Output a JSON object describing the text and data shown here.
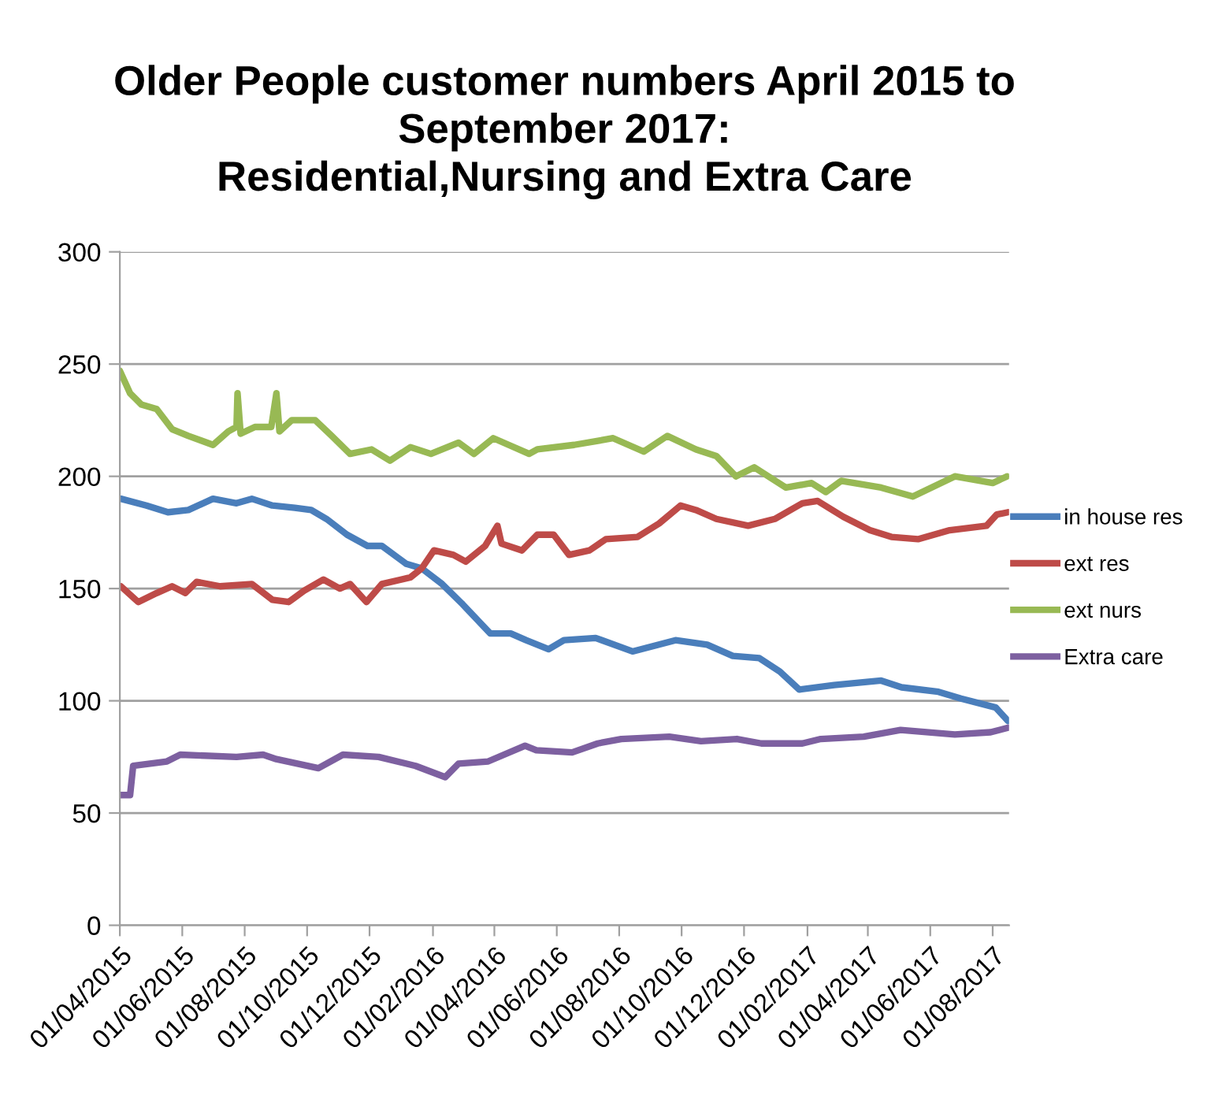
{
  "chart_data": {
    "type": "line",
    "title": "Older People customer numbers April 2015 to\nSeptember 2017:\nResidential,Nursing and Extra Care",
    "series": [
      {
        "name": "in house res",
        "color": "#4a7ebb",
        "x": [
          "2015-04-02",
          "2015-04-27",
          "2015-05-18",
          "2015-06-07",
          "2015-07-01",
          "2015-07-24",
          "2015-08-08",
          "2015-08-28",
          "2015-09-19",
          "2015-10-05",
          "2015-10-20",
          "2015-11-09",
          "2015-11-29",
          "2015-12-13",
          "2016-01-06",
          "2016-01-21",
          "2016-02-10",
          "2016-03-01",
          "2016-03-28",
          "2016-04-17",
          "2016-05-02",
          "2016-05-24",
          "2016-06-08",
          "2016-07-09",
          "2016-08-14",
          "2016-09-25",
          "2016-10-26",
          "2016-11-20",
          "2016-12-16",
          "2017-01-05",
          "2017-01-24",
          "2017-02-27",
          "2017-04-14",
          "2017-05-04",
          "2017-06-09",
          "2017-07-01",
          "2017-08-04",
          "2017-08-16"
        ],
        "values": [
          190,
          187,
          184,
          185,
          190,
          188,
          190,
          187,
          186,
          185,
          181,
          174,
          169,
          169,
          161,
          159,
          152,
          143,
          130,
          130,
          127,
          123,
          127,
          128,
          122,
          127,
          125,
          120,
          119,
          113,
          105,
          107,
          109,
          106,
          104,
          101,
          97,
          91
        ]
      },
      {
        "name": "ext res",
        "color": "#be4b48",
        "x": [
          "2015-04-02",
          "2015-04-19",
          "2015-05-07",
          "2015-05-22",
          "2015-06-04",
          "2015-06-15",
          "2015-07-08",
          "2015-08-08",
          "2015-08-28",
          "2015-09-13",
          "2015-09-28",
          "2015-10-17",
          "2015-11-02",
          "2015-11-12",
          "2015-11-28",
          "2015-12-13",
          "2016-01-10",
          "2016-01-21",
          "2016-02-02",
          "2016-02-21",
          "2016-03-04",
          "2016-03-23",
          "2016-04-04",
          "2016-04-08",
          "2016-04-28",
          "2016-05-13",
          "2016-05-29",
          "2016-06-13",
          "2016-07-03",
          "2016-07-19",
          "2016-08-19",
          "2016-09-09",
          "2016-09-30",
          "2016-10-15",
          "2016-11-04",
          "2016-12-05",
          "2016-12-31",
          "2017-01-27",
          "2017-02-11",
          "2017-03-08",
          "2017-04-03",
          "2017-04-24",
          "2017-05-20",
          "2017-06-20",
          "2017-07-26",
          "2017-08-05",
          "2017-08-16"
        ],
        "values": [
          151,
          144,
          148,
          151,
          148,
          153,
          151,
          152,
          145,
          144,
          149,
          154,
          150,
          152,
          144,
          152,
          155,
          159,
          167,
          165,
          162,
          169,
          178,
          170,
          167,
          174,
          174,
          165,
          167,
          172,
          173,
          179,
          187,
          185,
          181,
          178,
          181,
          188,
          189,
          182,
          176,
          173,
          172,
          176,
          178,
          183,
          184
        ]
      },
      {
        "name": "ext nurs",
        "color": "#98b954",
        "x": [
          "2015-04-01",
          "2015-04-11",
          "2015-04-22",
          "2015-05-07",
          "2015-05-22",
          "2015-06-07",
          "2015-07-01",
          "2015-07-16",
          "2015-07-24",
          "2015-07-25",
          "2015-07-28",
          "2015-08-11",
          "2015-08-27",
          "2015-09-01",
          "2015-09-04",
          "2015-09-16",
          "2015-10-09",
          "2015-10-25",
          "2015-11-12",
          "2015-12-03",
          "2015-12-21",
          "2016-01-10",
          "2016-01-30",
          "2016-02-26",
          "2016-03-12",
          "2016-03-31",
          "2016-04-15",
          "2016-05-05",
          "2016-05-13",
          "2016-06-18",
          "2016-07-26",
          "2016-08-25",
          "2016-09-17",
          "2016-10-15",
          "2016-11-04",
          "2016-11-23",
          "2016-12-11",
          "2017-01-11",
          "2017-02-05",
          "2017-02-19",
          "2017-03-06",
          "2017-04-14",
          "2017-05-15",
          "2017-06-25",
          "2017-08-01",
          "2017-08-15"
        ],
        "values": [
          247,
          237,
          232,
          230,
          221,
          218,
          214,
          220,
          222,
          237,
          219,
          222,
          222,
          237,
          220,
          225,
          225,
          218,
          210,
          212,
          207,
          213,
          210,
          215,
          210,
          217,
          214,
          210,
          212,
          214,
          217,
          211,
          218,
          212,
          209,
          200,
          204,
          195,
          197,
          193,
          198,
          195,
          191,
          200,
          197,
          200
        ]
      },
      {
        "name": "Extra care",
        "color": "#7d60a0",
        "x": [
          "2015-04-01",
          "2015-04-11",
          "2015-04-14",
          "2015-05-17",
          "2015-05-30",
          "2015-07-24",
          "2015-08-19",
          "2015-09-01",
          "2015-10-12",
          "2015-11-05",
          "2015-12-10",
          "2016-01-15",
          "2016-02-13",
          "2016-02-26",
          "2016-03-26",
          "2016-05-01",
          "2016-05-12",
          "2016-06-16",
          "2016-07-11",
          "2016-08-03",
          "2016-09-19",
          "2016-10-20",
          "2016-11-24",
          "2016-12-18",
          "2017-01-27",
          "2017-02-14",
          "2017-03-28",
          "2017-05-03",
          "2017-06-25",
          "2017-07-30",
          "2017-08-16"
        ],
        "values": [
          58,
          58,
          71,
          73,
          76,
          75,
          76,
          74,
          70,
          76,
          75,
          71,
          66,
          72,
          73,
          80,
          78,
          77,
          81,
          83,
          84,
          82,
          83,
          81,
          81,
          83,
          84,
          87,
          85,
          86,
          88
        ]
      }
    ],
    "xlim": [
      "2015-04-01",
      "2017-08-17"
    ],
    "xticks": [
      {
        "value": "2015-04-01",
        "label": "01/04/2015"
      },
      {
        "value": "2015-06-01",
        "label": "01/06/2015"
      },
      {
        "value": "2015-08-01",
        "label": "01/08/2015"
      },
      {
        "value": "2015-10-01",
        "label": "01/10/2015"
      },
      {
        "value": "2015-12-01",
        "label": "01/12/2015"
      },
      {
        "value": "2016-02-01",
        "label": "01/02/2016"
      },
      {
        "value": "2016-04-01",
        "label": "01/04/2016"
      },
      {
        "value": "2016-06-01",
        "label": "01/06/2016"
      },
      {
        "value": "2016-08-01",
        "label": "01/08/2016"
      },
      {
        "value": "2016-10-01",
        "label": "01/10/2016"
      },
      {
        "value": "2016-12-01",
        "label": "01/12/2016"
      },
      {
        "value": "2017-02-01",
        "label": "01/02/2017"
      },
      {
        "value": "2017-04-01",
        "label": "01/04/2017"
      },
      {
        "value": "2017-06-01",
        "label": "01/06/2017"
      },
      {
        "value": "2017-08-01",
        "label": "01/08/2017"
      }
    ],
    "ylim": [
      0,
      300
    ],
    "yticks": [
      0,
      50,
      100,
      150,
      200,
      250,
      300
    ],
    "grid": "y",
    "legend": "right",
    "marker": "none",
    "line_style": "solid"
  }
}
